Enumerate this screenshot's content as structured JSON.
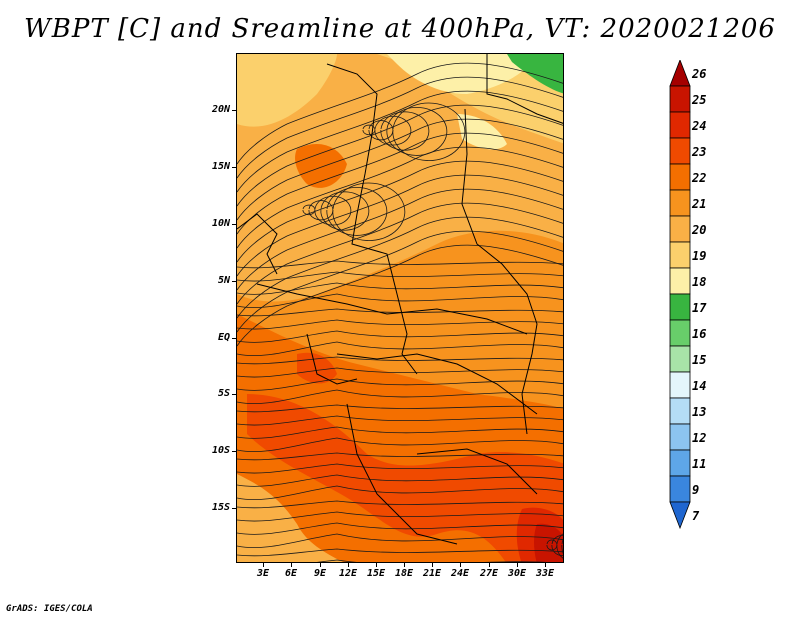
{
  "title": "WBPT [C] and Sreamline at 400hPa, VT: 2020021206",
  "credit": "GrADS: IGES/COLA",
  "map": {
    "lat_labels": [
      "20N",
      "15N",
      "10N",
      "5N",
      "EQ",
      "5S",
      "10S",
      "15S"
    ],
    "lon_labels": [
      "3E",
      "6E",
      "9E",
      "12E",
      "15E",
      "18E",
      "21E",
      "24E",
      "27E",
      "30E",
      "33E"
    ],
    "colorbar": {
      "labels": [
        "26",
        "25",
        "24",
        "23",
        "22",
        "21",
        "20",
        "19",
        "18",
        "17",
        "16",
        "15",
        "14",
        "13",
        "12",
        "11",
        "9",
        "7"
      ],
      "colors": [
        "#a50000",
        "#c81400",
        "#e02800",
        "#f04a00",
        "#f46f00",
        "#f7931e",
        "#f9b046",
        "#fbd06c",
        "#fdf0a8",
        "#38b540",
        "#68ce6a",
        "#a8e3a8",
        "#e4f6fb",
        "#b4ddf6",
        "#8cc4f0",
        "#5ea6e8",
        "#3a86de",
        "#1f66d0"
      ]
    },
    "field_colors": {
      "c18": "#fdf0a8",
      "c19": "#fbd06c",
      "c20": "#f9b046",
      "c21": "#f7931e",
      "c22": "#f46f00",
      "c23": "#f04a00",
      "c24": "#e02800",
      "c25": "#c81400",
      "c17": "#38b540"
    }
  }
}
